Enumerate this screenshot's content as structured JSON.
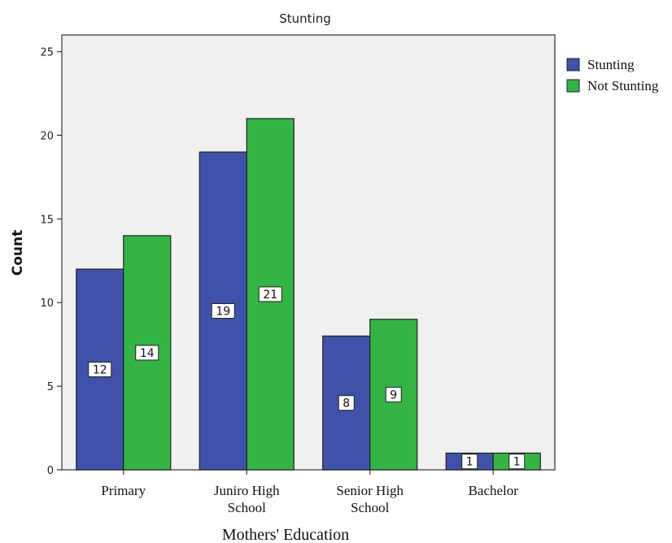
{
  "chart_data": {
    "type": "bar",
    "title": "Stunting",
    "xlabel": "Mothers' Education",
    "ylabel": "Count",
    "categories": [
      [
        "Primary"
      ],
      [
        "Juniro High",
        "School"
      ],
      [
        "Senior High",
        "School"
      ],
      [
        "Bachelor"
      ]
    ],
    "series": [
      {
        "name": "Stunting",
        "color": "#3f51a8",
        "values": [
          12,
          19,
          8,
          1
        ]
      },
      {
        "name": "Not Stunting",
        "color": "#34b347",
        "values": [
          14,
          21,
          9,
          1
        ]
      }
    ],
    "ylim": [
      0,
      26
    ],
    "yticks": [
      0,
      5,
      10,
      15,
      20,
      25
    ],
    "legend_position": "right",
    "grid": false,
    "plot_background": "#f0f0f0"
  }
}
